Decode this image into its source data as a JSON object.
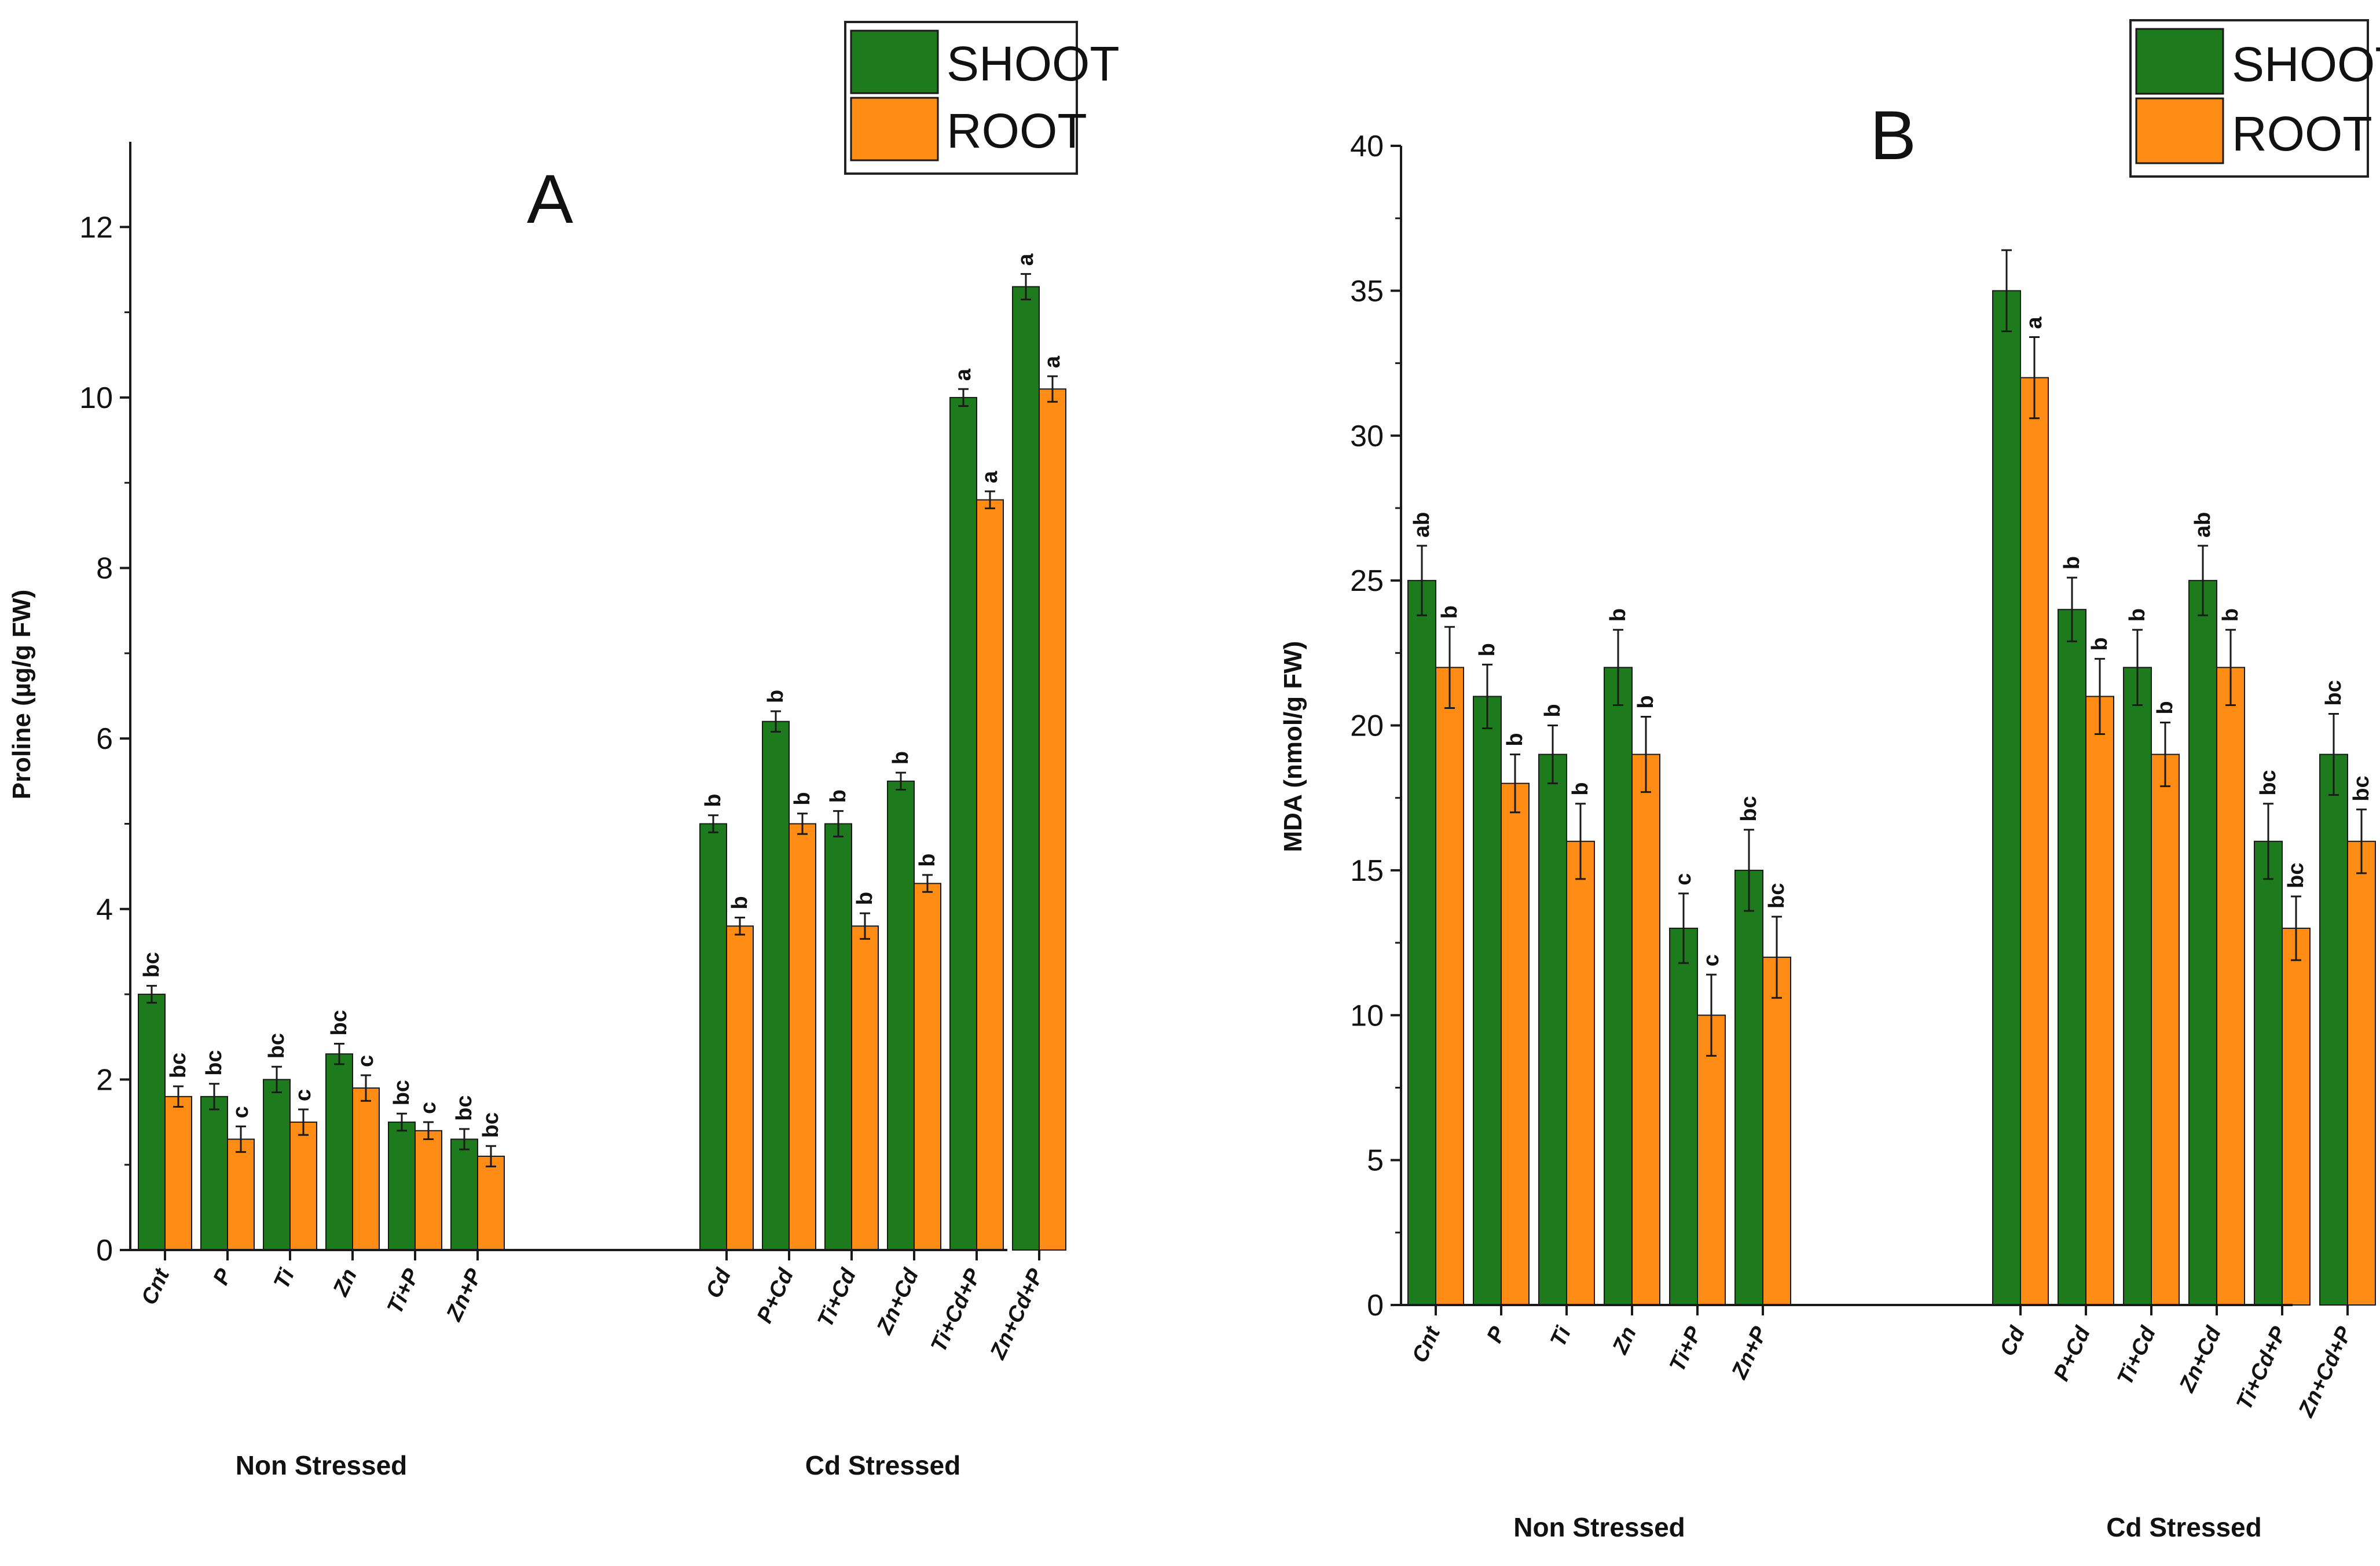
{
  "chart_data": [
    {
      "type": "bar",
      "panel": "A",
      "ylabel": "Proline (µg/g FW)",
      "ylim": [
        0,
        13
      ],
      "yticks": [
        0,
        2,
        4,
        6,
        8,
        10,
        12
      ],
      "categories": [
        "Cnt",
        "P",
        "Ti",
        "Zn",
        "Ti+P",
        "Zn+P",
        "Cd",
        "P+Cd",
        "Ti+Cd",
        "Zn+Cd",
        "Ti+Cd+P",
        "Zn+Cd+P"
      ],
      "groups": [
        {
          "label": "Non Stressed",
          "categories": [
            "Cnt",
            "P",
            "Ti",
            "Zn",
            "Ti+P",
            "Zn+P"
          ]
        },
        {
          "label": "Cd Stressed",
          "categories": [
            "Cd",
            "P+Cd",
            "Ti+Cd",
            "Zn+Cd",
            "Ti+Cd+P",
            "Zn+Cd+P"
          ]
        }
      ],
      "series": [
        {
          "name": "SHOOT",
          "color": "#1d7a1d",
          "values": [
            3.0,
            1.8,
            2.0,
            2.3,
            1.5,
            1.3,
            5.0,
            6.2,
            5.0,
            5.5,
            10.0,
            11.3
          ],
          "errors": [
            0.1,
            0.15,
            0.15,
            0.12,
            0.1,
            0.12,
            0.1,
            0.12,
            0.15,
            0.1,
            0.1,
            0.15
          ],
          "letters": [
            "bc",
            "bc",
            "bc",
            "bc",
            "bc",
            "bc",
            "b",
            "b",
            "b",
            "b",
            "a",
            "a"
          ]
        },
        {
          "name": "ROOT",
          "color": "#ff8c14",
          "values": [
            1.8,
            1.3,
            1.5,
            1.9,
            1.4,
            1.1,
            3.8,
            5.0,
            3.8,
            4.3,
            8.8,
            10.1
          ],
          "errors": [
            0.12,
            0.15,
            0.15,
            0.15,
            0.1,
            0.12,
            0.1,
            0.12,
            0.15,
            0.1,
            0.1,
            0.15
          ],
          "letters": [
            "bc",
            "c",
            "c",
            "c",
            "c",
            "bc",
            "b",
            "b",
            "b",
            "b",
            "a",
            "a"
          ]
        }
      ],
      "legend": [
        "SHOOT",
        "ROOT"
      ],
      "legend_position": "top-right"
    },
    {
      "type": "bar",
      "panel": "B",
      "ylabel": "MDA (nmol/g FW)",
      "ylim": [
        0,
        40
      ],
      "yticks": [
        0,
        5,
        10,
        15,
        20,
        25,
        30,
        35,
        40
      ],
      "categories": [
        "Cnt",
        "P",
        "Ti",
        "Zn",
        "Ti+P",
        "Zn+P",
        "Cd",
        "P+Cd",
        "Ti+Cd",
        "Zn+Cd",
        "Ti+Cd+P",
        "Zn+Cd+P"
      ],
      "groups": [
        {
          "label": "Non Stressed",
          "categories": [
            "Cnt",
            "P",
            "Ti",
            "Zn",
            "Ti+P",
            "Zn+P"
          ]
        },
        {
          "label": "Cd Stressed",
          "categories": [
            "Cd",
            "P+Cd",
            "Ti+Cd",
            "Zn+Cd",
            "Ti+Cd+P",
            "Zn+Cd+P"
          ]
        }
      ],
      "series": [
        {
          "name": "SHOOT",
          "color": "#1d7a1d",
          "values": [
            25,
            21,
            19,
            22,
            13,
            15,
            35,
            24,
            22,
            25,
            16,
            19
          ],
          "errors": [
            1.2,
            1.1,
            1.0,
            1.3,
            1.2,
            1.4,
            1.4,
            1.1,
            1.3,
            1.2,
            1.3,
            1.4
          ],
          "letters": [
            "ab",
            "b",
            "b",
            "b",
            "c",
            "bc",
            "",
            "b",
            "b",
            "ab",
            "bc",
            "bc"
          ]
        },
        {
          "name": "ROOT",
          "color": "#ff8c14",
          "values": [
            22,
            18,
            16,
            19,
            10,
            12,
            32,
            21,
            19,
            22,
            13,
            16
          ],
          "errors": [
            1.4,
            1.0,
            1.3,
            1.3,
            1.4,
            1.4,
            1.4,
            1.3,
            1.1,
            1.3,
            1.1,
            1.1
          ],
          "letters": [
            "b",
            "b",
            "b",
            "b",
            "c",
            "bc",
            "a",
            "b",
            "b",
            "b",
            "bc",
            "bc"
          ]
        }
      ],
      "legend": [
        "SHOOT",
        "ROOT"
      ],
      "legend_position": "top-right"
    }
  ]
}
